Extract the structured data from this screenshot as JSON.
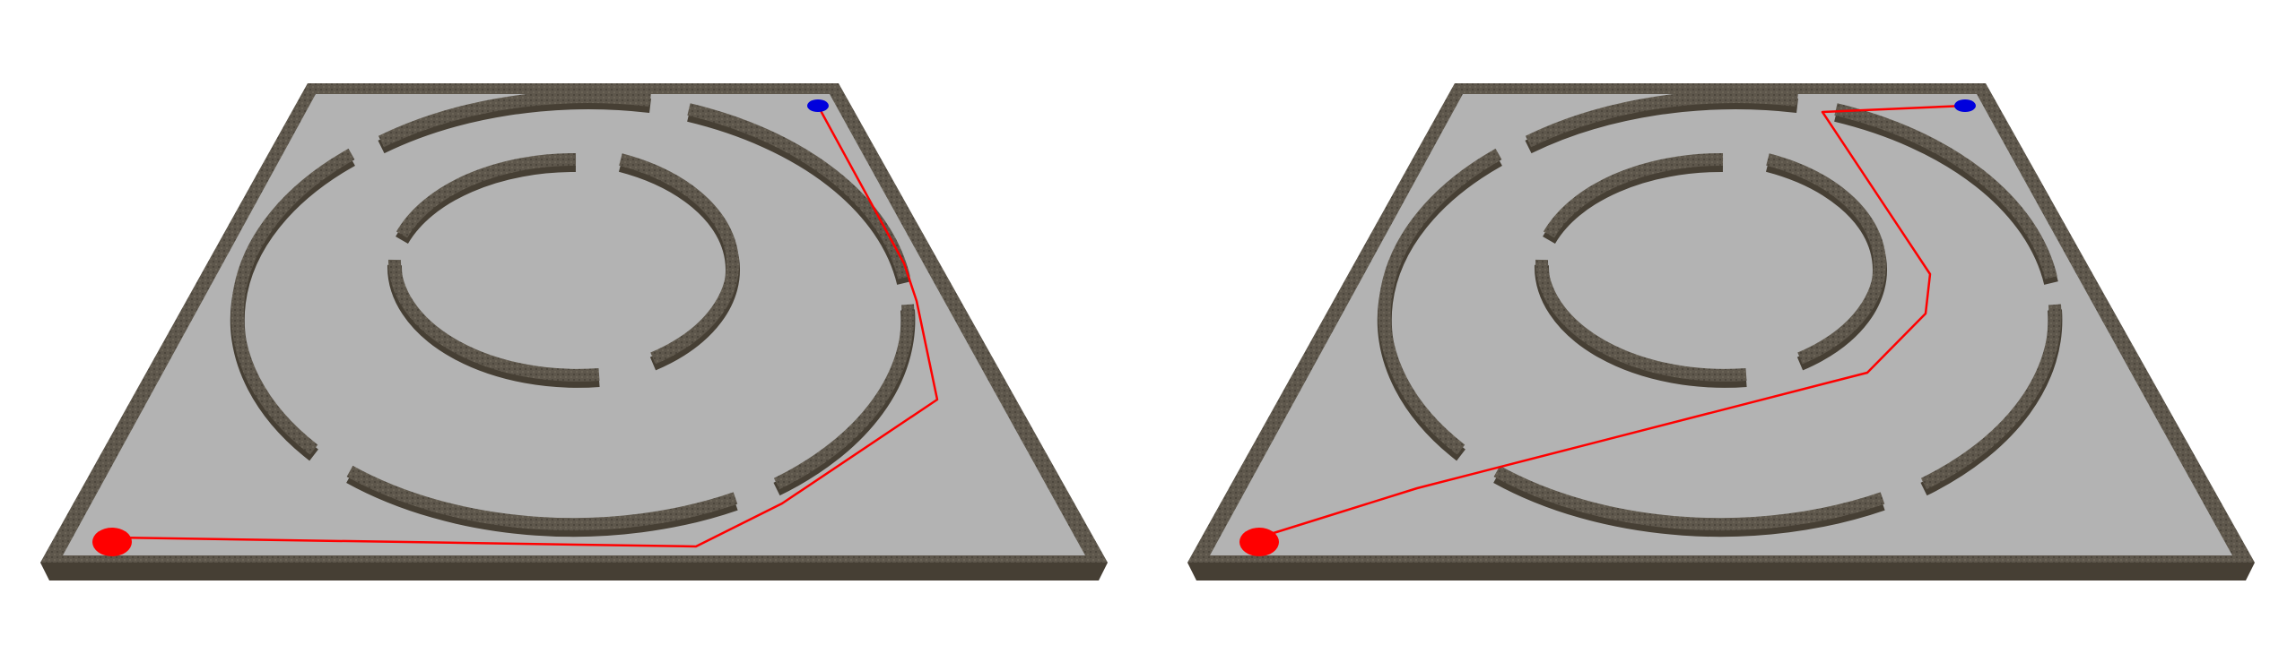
{
  "panels": [
    {
      "id": "left",
      "start_marker": {
        "label": "",
        "color": "#ff0000"
      },
      "goal_marker": {
        "label": "",
        "color": "#0000dd"
      },
      "path": {
        "color": "#ff0000"
      }
    },
    {
      "id": "right",
      "start_marker": {
        "label": "",
        "color": "#ff0000"
      },
      "goal_marker": {
        "label": "",
        "color": "#0000dd"
      },
      "path": {
        "color": "#ff0000"
      }
    }
  ],
  "colors": {
    "floor": "#b3b3b3",
    "wall_top": "#5e574c",
    "wall_side": "#463f34",
    "background": "#ffffff"
  }
}
